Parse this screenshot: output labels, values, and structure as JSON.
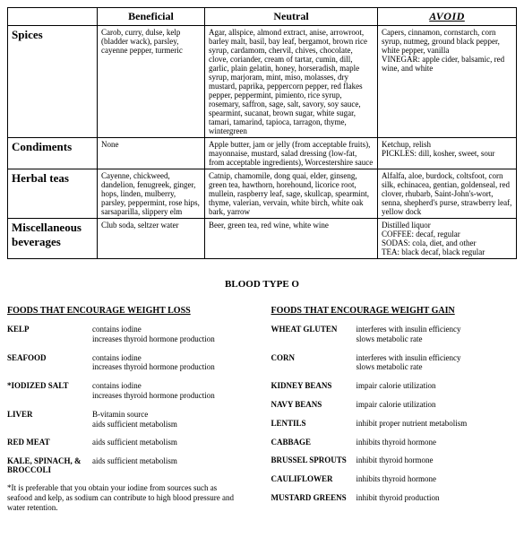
{
  "table": {
    "headers": {
      "beneficial": "Beneficial",
      "neutral": "Neutral",
      "avoid": "AVOID"
    },
    "rows": [
      {
        "label": "Spices",
        "beneficial": "Carob, curry, dulse, kelp (bladder wack), parsley, cayenne pepper, turmeric",
        "neutral": "Agar, allspice, almond extract, anise, arrowroot, barley malt, basil, bay leaf, bergamot, brown rice syrup, cardamom, chervil, chives, chocolate, clove, coriander, cream of tartar, cumin, dill, garlic, plain gelatin, honey, horseradish, maple syrup, marjoram, mint, miso, molasses, dry mustard, paprika, peppercorn pepper, red flakes pepper, peppermint, pimiento, rice syrup, rosemary, saffron, sage, salt, savory, soy sauce, spearmint, sucanat, brown sugar, white sugar, tamari, tamarind, tapioca, tarragon, thyme, wintergreen",
        "avoid": "Capers, cinnamon, cornstarch, corn syrup, nutmeg, ground black pepper, white pepper, vanilla\nVINEGAR: apple cider, balsamic, red wine, and white"
      },
      {
        "label": "Condiments",
        "beneficial": "None",
        "neutral": "Apple butter, jam or jelly (from acceptable fruits), mayonnaise, mustard, salad dressing (low-fat, from acceptable ingredients), Worcestershire sauce",
        "avoid": "Ketchup, relish\nPICKLES: dill, kosher, sweet, sour"
      },
      {
        "label": "Herbal teas",
        "beneficial": "Cayenne, chickweed, dandelion, fenugreek, ginger, hops, linden, mulberry, parsley, peppermint, rose hips, sarsaparilla, slippery elm",
        "neutral": "Catnip, chamomile, dong quai, elder, ginseng, green tea, hawthorn, horehound, licorice root, mullein, raspberry leaf, sage, skullcap, spearmint, thyme, valerian, vervain, white birch, white oak bark, yarrow",
        "avoid": "Alfalfa, aloe, burdock, coltsfoot, corn silk, echinacea, gentian, goldenseal, red clover, rhubarb, Saint-John's-wort, senna, shepherd's purse, strawberry leaf, yellow dock"
      },
      {
        "label": "Miscellaneous beverages",
        "beneficial": "Club soda, seltzer water",
        "neutral": "Beer, green tea, red wine, white wine",
        "avoid": "Distilled liquor\nCOFFEE: decaf, regular\nSODAS: cola, diet, and other\nTEA: black decaf, black regular"
      }
    ]
  },
  "title": "BLOOD TYPE O",
  "loss": {
    "heading": "FOODS THAT ENCOURAGE WEIGHT LOSS",
    "items": [
      {
        "name": "KELP",
        "desc": "contains iodine\nincreases thyroid hormone production"
      },
      {
        "name": "SEAFOOD",
        "desc": "contains iodine\nincreases thyroid hormone production"
      },
      {
        "name": "*IODIZED SALT",
        "desc": "contains iodine\nincreases thyroid hormone production"
      },
      {
        "name": "LIVER",
        "desc": "B-vitamin source\naids sufficient metabolism"
      },
      {
        "name": "RED MEAT",
        "desc": "aids sufficient metabolism"
      },
      {
        "name": "KALE, SPINACH, & BROCCOLI",
        "desc": "aids sufficient metabolism"
      }
    ],
    "footnote": "*It is preferable that you obtain your iodine from sources such as seafood and kelp, as sodium can contribute to high blood pressure and water retention."
  },
  "gain": {
    "heading": "FOODS THAT ENCOURAGE WEIGHT GAIN",
    "items": [
      {
        "name": "WHEAT GLUTEN",
        "desc": "interferes with insulin efficiency\nslows metabolic rate"
      },
      {
        "name": "CORN",
        "desc": "interferes with insulin efficiency\nslows metabolic rate"
      },
      {
        "name": "KIDNEY BEANS",
        "desc": "impair calorie utilization"
      },
      {
        "name": "NAVY BEANS",
        "desc": "impair calorie utilization"
      },
      {
        "name": "LENTILS",
        "desc": "inhibit proper nutrient metabolism"
      },
      {
        "name": "CABBAGE",
        "desc": "inhibits thyroid hormone"
      },
      {
        "name": "BRUSSEL SPROUTS",
        "desc": "inhibit thyroid hormone"
      },
      {
        "name": "CAULIFLOWER",
        "desc": "inhibits thyroid hormone"
      },
      {
        "name": "MUSTARD GREENS",
        "desc": "inhibit thyroid production"
      }
    ]
  }
}
